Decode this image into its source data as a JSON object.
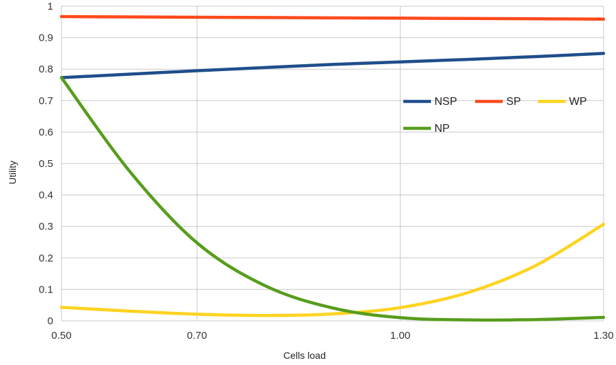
{
  "chart_data": {
    "type": "line",
    "title": "",
    "xlabel": "Cells load",
    "ylabel": "Utility",
    "xlim": [
      0.5,
      1.3
    ],
    "ylim": [
      0,
      1
    ],
    "grid": true,
    "legend_position": "right",
    "x_ticks": [
      "0.50",
      "0.70",
      "1.00",
      "1.30"
    ],
    "y_ticks": [
      "0",
      "0.1",
      "0.2",
      "0.3",
      "0.4",
      "0.5",
      "0.6",
      "0.7",
      "0.8",
      "0.9",
      "1"
    ],
    "x": [
      0.5,
      0.6,
      0.7,
      0.8,
      0.9,
      1.0,
      1.1,
      1.2,
      1.3
    ],
    "series": [
      {
        "name": "NSP",
        "color": "#1f4e8c",
        "values": [
          0.773,
          0.784,
          0.795,
          0.805,
          0.815,
          0.823,
          0.831,
          0.84,
          0.85
        ]
      },
      {
        "name": "SP",
        "color": "#ff4a1c",
        "values": [
          0.967,
          0.966,
          0.965,
          0.964,
          0.963,
          0.962,
          0.961,
          0.96,
          0.959
        ]
      },
      {
        "name": "WP",
        "color": "#ffd320",
        "values": [
          0.043,
          0.031,
          0.021,
          0.017,
          0.022,
          0.042,
          0.09,
          0.176,
          0.307
        ]
      },
      {
        "name": "NP",
        "color": "#579d1c",
        "values": [
          0.773,
          0.477,
          0.248,
          0.112,
          0.041,
          0.01,
          0.003,
          0.004,
          0.011
        ]
      }
    ]
  }
}
